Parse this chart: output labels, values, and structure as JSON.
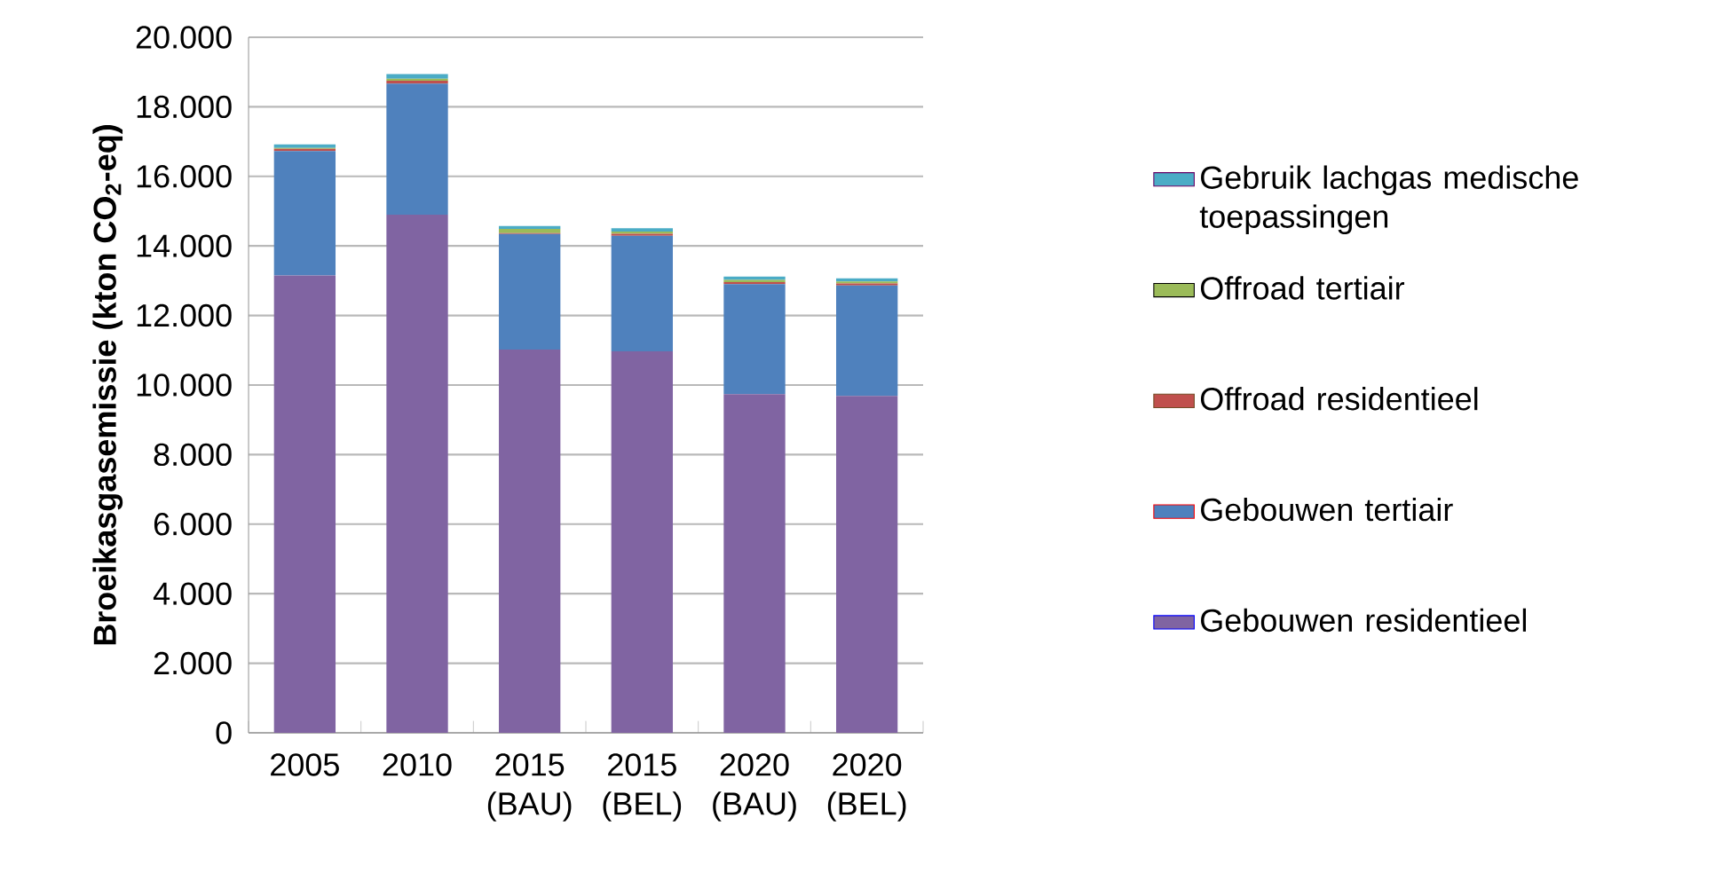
{
  "chart_data": {
    "type": "bar",
    "stacked": true,
    "ylabel": "Broeikasgasemissie (kton CO$_{2}$-eq)",
    "categories": [
      "2005",
      "2010",
      "2015 (BAU)",
      "2015 (BEL)",
      "2020 (BAU)",
      "2020 (BEL)"
    ],
    "series": [
      {
        "name": "Gebouwen residentieel",
        "color": "#8064a2",
        "values": [
          13150,
          14900,
          11020,
          10970,
          9740,
          9690
        ]
      },
      {
        "name": "Gebouwen tertiair",
        "color": "#4f81bd",
        "values": [
          3580,
          3770,
          3320,
          3320,
          3160,
          3170
        ]
      },
      {
        "name": "Offroad residentieel",
        "color": "#c0504d",
        "values": [
          60,
          80,
          30,
          60,
          60,
          60
        ]
      },
      {
        "name": "Offroad tertiair",
        "color": "#9bbb59",
        "values": [
          30,
          60,
          120,
          60,
          60,
          60
        ]
      },
      {
        "name": "Gebruik lachgas medische toepassingen",
        "color": "#4bacc6",
        "values": [
          100,
          130,
          80,
          100,
          100,
          90
        ]
      }
    ],
    "ylim": [
      0,
      20000
    ],
    "yticks": [
      0,
      {
        "value": 2000,
        "label": "2.000"
      },
      {
        "value": 4000,
        "label": "4.000"
      },
      {
        "value": 6000,
        "label": "6.000"
      },
      {
        "value": 8000,
        "label": "8.000"
      },
      {
        "value": 10000,
        "label": "10.000"
      },
      {
        "value": 12000,
        "label": "12.000"
      },
      {
        "value": 14000,
        "label": "14.000"
      },
      {
        "value": 16000,
        "label": "16.000"
      },
      {
        "value": 18000,
        "label": "18.000"
      },
      {
        "value": 20000,
        "label": "20.000"
      }
    ],
    "grid": "y",
    "legend": "right"
  }
}
